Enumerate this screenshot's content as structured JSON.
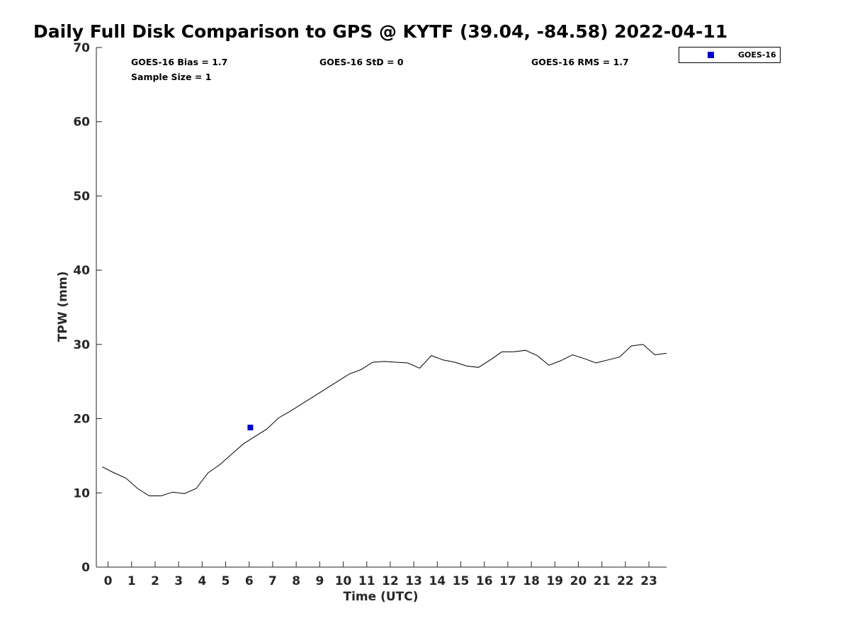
{
  "chart_data": {
    "type": "line",
    "title": "Daily Full Disk Comparison to GPS @ KYTF (39.04, -84.58) 2022-04-11",
    "xlabel": "Time (UTC)",
    "ylabel": "TPW (mm)",
    "xlim": [
      -0.5,
      23.75
    ],
    "ylim": [
      0,
      70
    ],
    "x_ticks": [
      "0",
      "1",
      "2",
      "3",
      "4",
      "5",
      "6",
      "7",
      "8",
      "9",
      "10",
      "11",
      "12",
      "13",
      "14",
      "15",
      "16",
      "17",
      "18",
      "19",
      "20",
      "21",
      "22",
      "23"
    ],
    "y_ticks": [
      "0",
      "10",
      "20",
      "30",
      "40",
      "50",
      "60",
      "70"
    ],
    "grid": false,
    "legend_position": "top-right",
    "stats": {
      "bias": "GOES-16 Bias = 1.7",
      "std": "GOES-16 StD = 0",
      "rms": "GOES-16 RMS = 1.7",
      "sample": "Sample Size = 1"
    },
    "series": [
      {
        "kind": "line",
        "color": "#000000",
        "x": [
          -0.25,
          0.25,
          0.75,
          1.25,
          1.75,
          2.25,
          2.75,
          3.25,
          3.75,
          4.25,
          4.75,
          5.25,
          5.75,
          6.25,
          6.75,
          7.25,
          7.75,
          8.25,
          8.75,
          9.25,
          9.75,
          10.25,
          10.75,
          11.25,
          11.75,
          12.25,
          12.75,
          13.25,
          13.75,
          14.25,
          14.75,
          15.25,
          15.75,
          16.25,
          16.75,
          17.25,
          17.75,
          18.25,
          18.75,
          19.25,
          19.75,
          20.25,
          20.75,
          21.25,
          21.75,
          22.25,
          22.75,
          23.25,
          23.75
        ],
        "y": [
          13.5,
          12.7,
          12.0,
          10.6,
          9.6,
          9.6,
          10.1,
          9.9,
          10.6,
          12.7,
          13.8,
          15.2,
          16.6,
          17.6,
          18.6,
          20.1,
          21.0,
          22.0,
          23.0,
          24.0,
          25.0,
          26.0,
          26.6,
          27.6,
          27.7,
          27.6,
          27.5,
          26.8,
          28.5,
          27.9,
          27.6,
          27.1,
          26.9,
          27.9,
          29.0,
          29.0,
          29.2,
          28.5,
          27.2,
          27.8,
          28.6,
          28.1,
          27.5,
          27.9,
          28.3,
          29.8,
          30.0,
          28.6,
          28.8
        ]
      },
      {
        "name": "GOES-16",
        "kind": "scatter",
        "color": "#0000cc",
        "x": [
          6.05
        ],
        "y": [
          18.8
        ]
      }
    ]
  }
}
